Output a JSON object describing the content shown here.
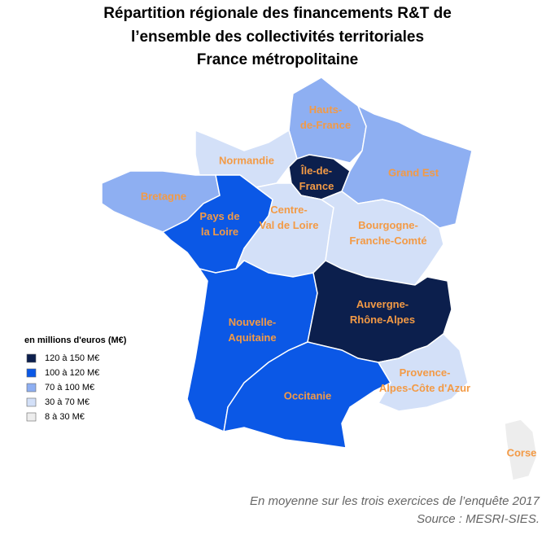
{
  "title": [
    "Répartition régionale des financements R&T de",
    "l’ensemble des collectivités territoriales",
    "France métropolitaine"
  ],
  "legend": {
    "title": "en millions d'euros (M€)",
    "classes": [
      {
        "label": "120 à 150 M€",
        "color": "#0c1f4d"
      },
      {
        "label": "100 à 120 M€",
        "color": "#0b58e6"
      },
      {
        "label": "70 à 100 M€",
        "color": "#8eaff2"
      },
      {
        "label": "30 à 70 M€",
        "color": "#d3e0f8"
      },
      {
        "label": "8 à 30 M€",
        "color": "#ededed"
      }
    ]
  },
  "label_color": "#f39a45",
  "regions": [
    {
      "name_lines": [
        "Hauts-",
        "de-France"
      ],
      "class": 2
    },
    {
      "name_lines": [
        "Normandie"
      ],
      "class": 3
    },
    {
      "name_lines": [
        "Île-de-",
        "France"
      ],
      "class": 0
    },
    {
      "name_lines": [
        "Grand Est"
      ],
      "class": 2
    },
    {
      "name_lines": [
        "Bretagne"
      ],
      "class": 2
    },
    {
      "name_lines": [
        "Pays de",
        "la Loire"
      ],
      "class": 1
    },
    {
      "name_lines": [
        "Centre-",
        "Val de Loire"
      ],
      "class": 3
    },
    {
      "name_lines": [
        "Bourgogne-",
        "Franche-Comté"
      ],
      "class": 3
    },
    {
      "name_lines": [
        "Nouvelle-",
        "Aquitaine"
      ],
      "class": 1
    },
    {
      "name_lines": [
        "Auvergne-",
        "Rhône-Alpes"
      ],
      "class": 0
    },
    {
      "name_lines": [
        "Occitanie"
      ],
      "class": 1
    },
    {
      "name_lines": [
        "Provence-",
        "Alpes-Côte d'Azur"
      ],
      "class": 3
    },
    {
      "name_lines": [
        "Corse"
      ],
      "class": 4
    }
  ],
  "notes": [
    "En moyenne sur les trois exercices de l’enquête 2017",
    "Source : MESRI-SIES."
  ]
}
